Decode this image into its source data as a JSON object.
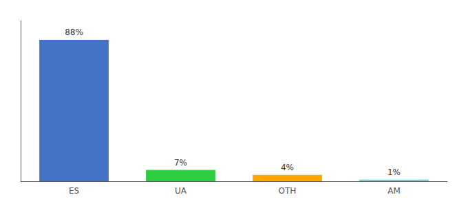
{
  "chart_data": {
    "type": "bar",
    "categories": [
      "ES",
      "UA",
      "OTH",
      "AM"
    ],
    "values": [
      88,
      7,
      4,
      1
    ],
    "value_labels": [
      "88%",
      "7%",
      "4%",
      "1%"
    ],
    "colors": [
      "#4472C4",
      "#2ECC40",
      "#FFA500",
      "#74C6E8"
    ],
    "ylim": [
      0,
      100
    ],
    "grid": false,
    "data_labels": true,
    "tick_labels": "x"
  }
}
